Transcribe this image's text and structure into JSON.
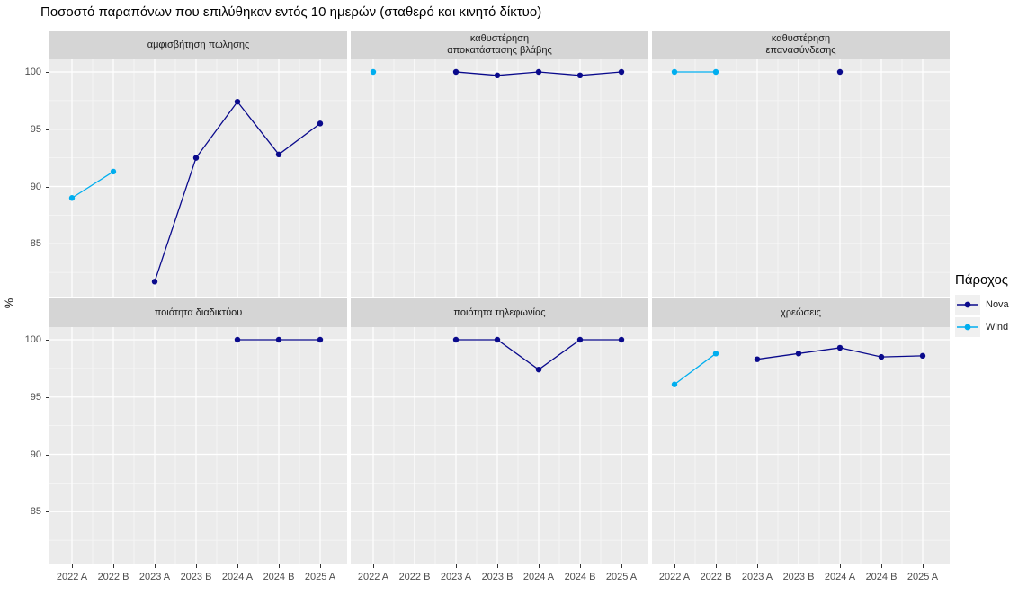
{
  "title": "Ποσοστό παραπόνων που επιλύθηκαν εντός 10 ημερών (σταθερό και κινητό δίκτυο)",
  "y_axis": {
    "title": "%",
    "ticks": [
      "100",
      "95",
      "90",
      "85"
    ]
  },
  "legend": {
    "title": "Πάροχος",
    "entries": [
      {
        "name": "Nova",
        "color": "#0A0A8C"
      },
      {
        "name": "Wind",
        "color": "#00AEEF"
      }
    ]
  },
  "chart_data": {
    "type": "line",
    "title": "Ποσοστό παραπόνων που επιλύθηκαν εντός 10 ημερών (σταθερό και κινητό δίκτυο)",
    "xlabel": "",
    "ylabel": "%",
    "ylim": [
      80.5,
      101
    ],
    "y_ticks": [
      85,
      90,
      95,
      100
    ],
    "grid": "on",
    "legend_position": "right",
    "categories": [
      "2022 A",
      "2022 B",
      "2023 A",
      "2023 B",
      "2024 A",
      "2024 B",
      "2025 A"
    ],
    "series_colors": {
      "Nova": "#0A0A8C",
      "Wind": "#00AEEF"
    },
    "facets": [
      {
        "label": "αμφισβήτηση πώλησης",
        "series": [
          {
            "name": "Nova",
            "points": [
              {
                "x": "2023 A",
                "y": 81.7
              },
              {
                "x": "2023 B",
                "y": 92.5
              },
              {
                "x": "2024 A",
                "y": 97.4
              },
              {
                "x": "2024 B",
                "y": 92.8
              },
              {
                "x": "2025 A",
                "y": 95.5
              }
            ]
          },
          {
            "name": "Wind",
            "points": [
              {
                "x": "2022 A",
                "y": 89.0
              },
              {
                "x": "2022 B",
                "y": 91.3
              }
            ]
          }
        ]
      },
      {
        "label": "καθυστέρηση\nαποκατάστασης βλάβης",
        "series": [
          {
            "name": "Nova",
            "points": [
              {
                "x": "2023 A",
                "y": 100
              },
              {
                "x": "2023 B",
                "y": 99.7
              },
              {
                "x": "2024 A",
                "y": 100
              },
              {
                "x": "2024 B",
                "y": 99.7
              },
              {
                "x": "2025 A",
                "y": 100
              }
            ]
          },
          {
            "name": "Wind",
            "points": [
              {
                "x": "2022 A",
                "y": 100
              }
            ]
          }
        ]
      },
      {
        "label": "καθυστέρηση\nεπανασύνδεσης",
        "series": [
          {
            "name": "Nova",
            "points": [
              {
                "x": "2024 A",
                "y": 100
              }
            ]
          },
          {
            "name": "Wind",
            "points": [
              {
                "x": "2022 A",
                "y": 100
              },
              {
                "x": "2022 B",
                "y": 100
              }
            ]
          }
        ]
      },
      {
        "label": "ποιότητα διαδικτύου",
        "series": [
          {
            "name": "Nova",
            "points": [
              {
                "x": "2024 A",
                "y": 100
              },
              {
                "x": "2024 B",
                "y": 100
              },
              {
                "x": "2025 A",
                "y": 100
              }
            ]
          }
        ]
      },
      {
        "label": "ποιότητα τηλεφωνίας",
        "series": [
          {
            "name": "Nova",
            "points": [
              {
                "x": "2023 A",
                "y": 100
              },
              {
                "x": "2023 B",
                "y": 100
              },
              {
                "x": "2024 A",
                "y": 97.4
              },
              {
                "x": "2024 B",
                "y": 100
              },
              {
                "x": "2025 A",
                "y": 100
              }
            ]
          }
        ]
      },
      {
        "label": "χρεώσεις",
        "series": [
          {
            "name": "Nova",
            "points": [
              {
                "x": "2023 A",
                "y": 98.3
              },
              {
                "x": "2023 B",
                "y": 98.8
              },
              {
                "x": "2024 A",
                "y": 99.3
              },
              {
                "x": "2024 B",
                "y": 98.5
              },
              {
                "x": "2025 A",
                "y": 98.6
              }
            ]
          },
          {
            "name": "Wind",
            "points": [
              {
                "x": "2022 A",
                "y": 96.1
              },
              {
                "x": "2022 B",
                "y": 98.8
              }
            ]
          }
        ]
      }
    ]
  }
}
